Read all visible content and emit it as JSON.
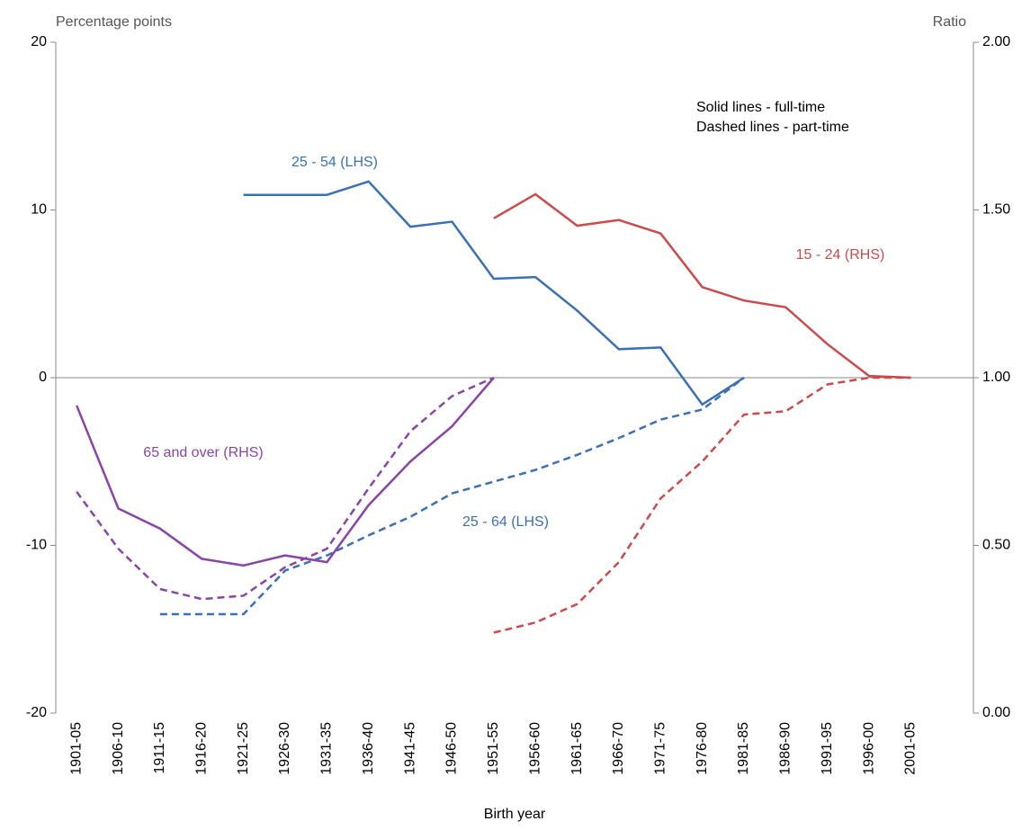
{
  "chart_data": {
    "type": "line",
    "y_label": "Percentage points",
    "y2_label": "Ratio",
    "x_label": "Birth year",
    "annotations": [
      "Solid lines - full-time",
      "Dashed lines - part-time"
    ],
    "categories": [
      "1901-05",
      "1906-10",
      "1911-15",
      "1916-20",
      "1921-25",
      "1926-30",
      "1931-35",
      "1936-40",
      "1941-45",
      "1946-50",
      "1951-55",
      "1956-60",
      "1961-65",
      "1966-70",
      "1971-75",
      "1976-80",
      "1981-85",
      "1986-90",
      "1991-95",
      "1996-00",
      "2001-05"
    ],
    "ylim": [
      -20,
      20
    ],
    "yticks": [
      -20,
      -10,
      0,
      10,
      20
    ],
    "y2lim": [
      0,
      2
    ],
    "y2ticks": [
      {
        "value": 0,
        "label": "0.00"
      },
      {
        "value": 0.5,
        "label": "0.50"
      },
      {
        "value": 1,
        "label": "1.00"
      },
      {
        "value": 1.5,
        "label": "1.50"
      },
      {
        "value": 2,
        "label": "2.00"
      }
    ],
    "grid": false,
    "series": [
      {
        "name": "25 - 54 (LHS)",
        "color": "#3a70b5",
        "dashed": false,
        "axis": "y",
        "values": [
          null,
          null,
          null,
          null,
          10.9,
          10.9,
          10.9,
          11.7,
          9.0,
          9.3,
          5.9,
          6.0,
          4.0,
          1.7,
          1.8,
          -1.6,
          0.0,
          null,
          null,
          null,
          null
        ]
      },
      {
        "name": "25 - 64 (LHS)",
        "color": "#3a70b5",
        "dashed": true,
        "axis": "y",
        "values": [
          null,
          null,
          -14.1,
          -14.1,
          -14.1,
          -11.5,
          -10.6,
          -9.4,
          -8.3,
          -6.9,
          -6.2,
          -5.5,
          -4.6,
          -3.6,
          -2.5,
          -1.9,
          0.0,
          null,
          null,
          null,
          null
        ]
      },
      {
        "name": "15 - 24 (RHS)",
        "color": "#cc4a4a",
        "dashed": false,
        "axis": "y2",
        "values": [
          null,
          null,
          null,
          null,
          null,
          null,
          null,
          null,
          null,
          null,
          1.475,
          1.547,
          1.453,
          1.47,
          1.43,
          1.27,
          1.23,
          1.21,
          1.1,
          1.005,
          1.0
        ]
      },
      {
        "color": "#cc4a4a",
        "dashed": true,
        "axis": "y2",
        "values": [
          null,
          null,
          null,
          null,
          null,
          null,
          null,
          null,
          null,
          null,
          0.24,
          0.27,
          0.325,
          0.45,
          0.64,
          0.75,
          0.89,
          0.9,
          0.98,
          1.0,
          1.0
        ]
      },
      {
        "name": "65 and over (RHS)",
        "color": "#8a44a8",
        "dashed": false,
        "axis": "y2",
        "values": [
          0.917,
          0.61,
          0.55,
          0.46,
          0.44,
          0.47,
          0.45,
          0.62,
          0.75,
          0.855,
          1.0,
          null,
          null,
          null,
          null,
          null,
          null,
          null,
          null,
          null,
          null
        ]
      },
      {
        "color": "#8a44a8",
        "dashed": true,
        "axis": "y2",
        "values": [
          0.66,
          0.49,
          0.37,
          0.34,
          0.35,
          0.435,
          0.49,
          0.67,
          0.84,
          0.945,
          1.0,
          null,
          null,
          null,
          null,
          null,
          null,
          null,
          null,
          null,
          null
        ]
      }
    ]
  }
}
